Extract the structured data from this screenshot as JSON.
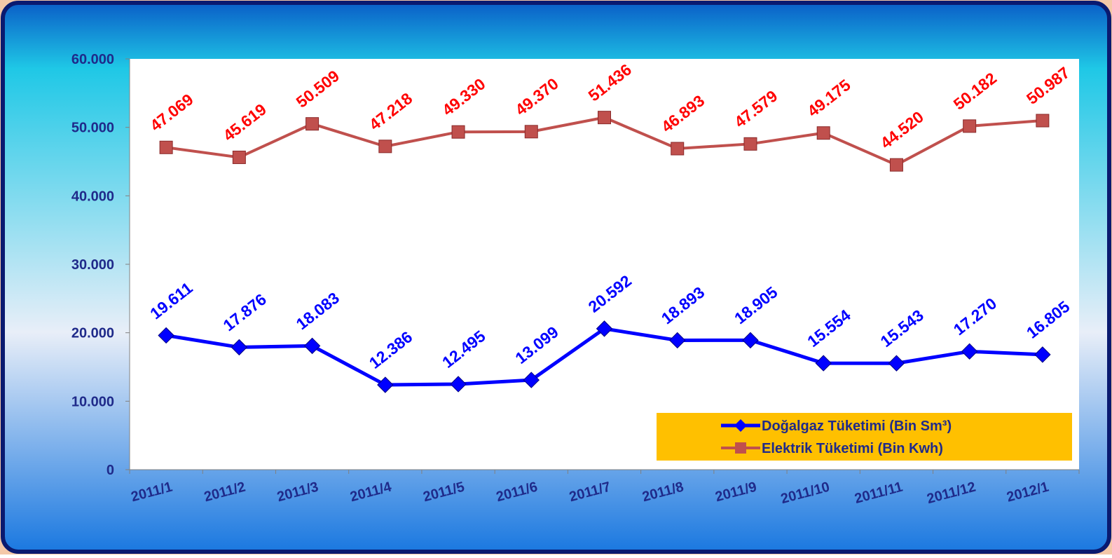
{
  "chart_data": {
    "type": "line",
    "categories": [
      "2011/1",
      "2011/2",
      "2011/3",
      "2011/4",
      "2011/5",
      "2011/6",
      "2011/7",
      "2011/8",
      "2011/9",
      "2011/10",
      "2011/11",
      "2011/12",
      "2012/1"
    ],
    "series": [
      {
        "name": "Doğalgaz Tüketimi (Bin Sm³)",
        "color": "#0000ff",
        "label_color": "#0000ff",
        "marker": "diamond",
        "values": [
          19611,
          17876,
          18083,
          12386,
          12495,
          13099,
          20592,
          18893,
          18905,
          15554,
          15543,
          17270,
          16805
        ],
        "value_labels": [
          "19.611",
          "17.876",
          "18.083",
          "12.386",
          "12.495",
          "13.099",
          "20.592",
          "18.893",
          "18.905",
          "15.554",
          "15.543",
          "17.270",
          "16.805"
        ]
      },
      {
        "name": "Elektrik Tüketimi (Bin Kwh)",
        "color": "#c0504d",
        "label_color": "#ff0000",
        "marker": "square",
        "values": [
          47069,
          45619,
          50509,
          47218,
          49330,
          49370,
          51436,
          46893,
          47579,
          49175,
          44520,
          50182,
          50987
        ],
        "value_labels": [
          "47.069",
          "45.619",
          "50.509",
          "47.218",
          "49.330",
          "49.370",
          "51.436",
          "46.893",
          "47.579",
          "49.175",
          "44.520",
          "50.182",
          "50.987"
        ]
      }
    ],
    "ylim": [
      0,
      60000
    ],
    "yticks": [
      0,
      {
        "value": 10000,
        "label": "10.000"
      },
      {
        "value": 20000,
        "label": "20.000"
      },
      {
        "value": 30000,
        "label": "30.000"
      },
      {
        "value": 40000,
        "label": "40.000"
      },
      {
        "value": 50000,
        "label": "50.000"
      },
      {
        "value": 60000,
        "label": "60.000"
      }
    ],
    "legend_background": "#ffc000"
  }
}
